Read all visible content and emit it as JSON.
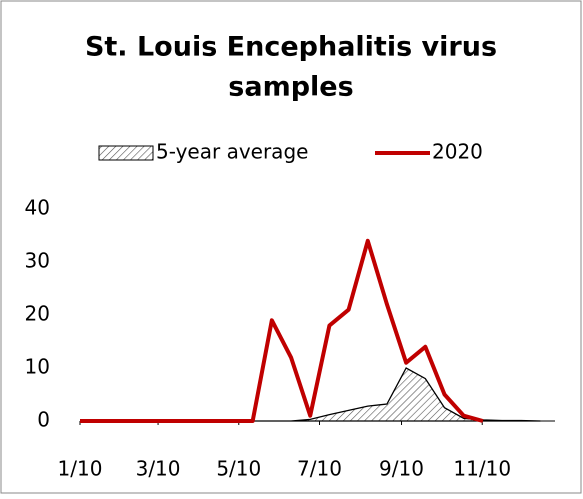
{
  "chart_data": {
    "type": "line",
    "title": [
      "St. Louis Encephalitis virus",
      "samples"
    ],
    "x": [
      10,
      24.5,
      39,
      53.5,
      68,
      82.5,
      97,
      111.5,
      126,
      140.5,
      155,
      169.5,
      184,
      198.5,
      213,
      227.5,
      242,
      256.5,
      271,
      285.5,
      300,
      314.5,
      329,
      343.5,
      358
    ],
    "series": [
      {
        "name": "5-year average",
        "color": "#000000",
        "fill": "hatch",
        "values": [
          0,
          0,
          0,
          0,
          0,
          0,
          0,
          0,
          0,
          0,
          0,
          0,
          0.3,
          1.2,
          2,
          2.8,
          3.2,
          10,
          8,
          2.5,
          0.5,
          0.2,
          0.1,
          0.1,
          0
        ]
      },
      {
        "name": "2020",
        "color": "#c00000",
        "values": [
          0,
          0,
          0,
          0,
          0,
          0,
          0,
          0,
          0,
          0,
          19,
          12,
          1,
          18,
          21,
          34,
          22,
          11,
          14,
          5,
          1,
          0,
          null,
          null,
          null
        ]
      }
    ],
    "xlim": [
      10,
      369
    ],
    "xticks": [
      {
        "value": 10,
        "label": "1/10"
      },
      {
        "value": 69,
        "label": "3/10"
      },
      {
        "value": 130,
        "label": "5/10"
      },
      {
        "value": 191,
        "label": "7/10"
      },
      {
        "value": 253,
        "label": "9/10"
      },
      {
        "value": 314,
        "label": "11/10"
      }
    ],
    "ylim": [
      0,
      40
    ],
    "yticks": [
      0,
      10,
      20,
      30,
      40
    ],
    "legend": "top"
  }
}
